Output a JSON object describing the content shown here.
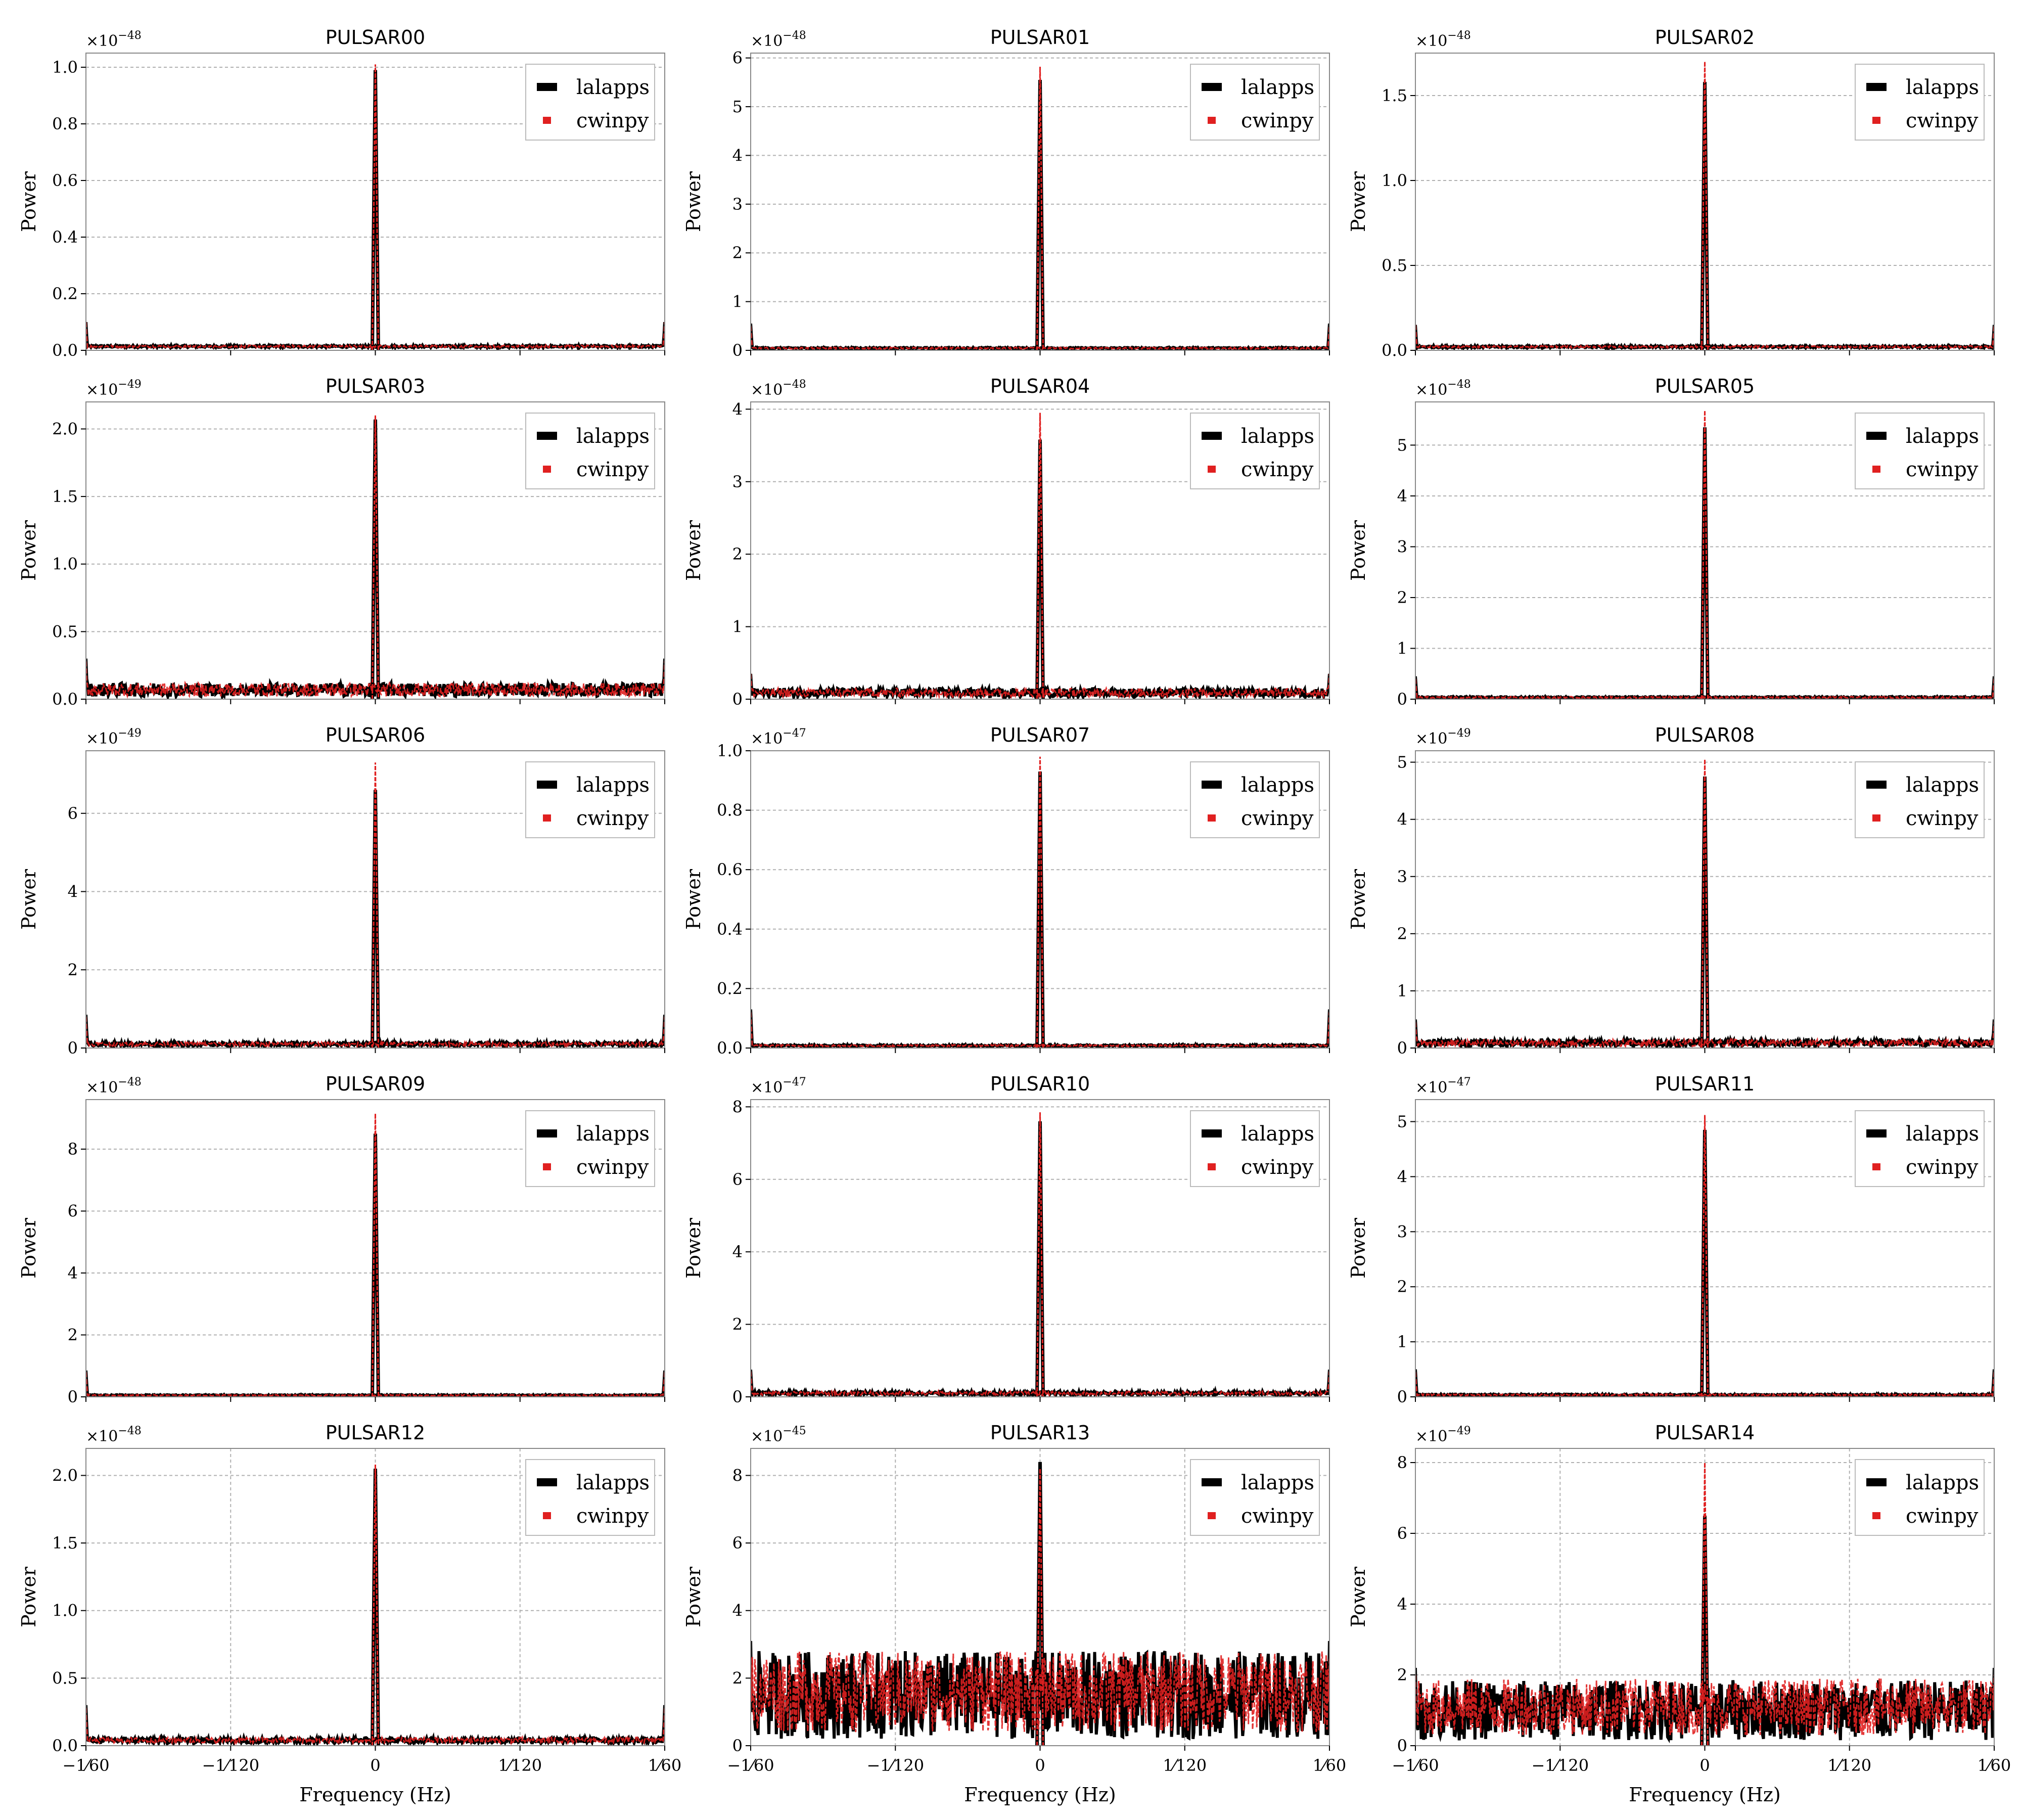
{
  "chart_data": [
    {
      "type": "line",
      "title": "PULSAR00",
      "exponent": "−48",
      "ylabel": "Power",
      "xlabel": "",
      "ylim": [
        0,
        1.05
      ],
      "yticks": [
        "0.0",
        "0.2",
        "0.4",
        "0.6",
        "0.8",
        "1.0"
      ],
      "ytick_values": [
        0,
        0.2,
        0.4,
        0.6,
        0.8,
        1.0
      ],
      "xlim": [
        -0.016667,
        0.016667
      ],
      "xticks": [
        "−1⁄60",
        "−1⁄120",
        "0",
        "1⁄120",
        "1⁄60"
      ],
      "xtick_values": [
        -0.016667,
        -0.008333,
        0,
        0.008333,
        0.016667
      ],
      "x_grid": false,
      "peak_x": 0,
      "series": [
        {
          "name": "lalapps",
          "peak": 0.99,
          "noise_floor": 0.01,
          "noise_range": 0.008,
          "edge_value": 0.1
        },
        {
          "name": "cwinpy",
          "peak": 1.01,
          "noise_floor": 0.01,
          "noise_range": 0.008,
          "edge_value": 0.1
        }
      ],
      "legend": [
        "lalapps",
        "cwinpy"
      ],
      "legend_position": "upper right"
    },
    {
      "type": "line",
      "title": "PULSAR01",
      "exponent": "−48",
      "ylabel": "Power",
      "xlabel": "",
      "ylim": [
        0,
        6.1
      ],
      "yticks": [
        "0",
        "1",
        "2",
        "3",
        "4",
        "5",
        "6"
      ],
      "ytick_values": [
        0,
        1,
        2,
        3,
        4,
        5,
        6
      ],
      "xlim": [
        -0.016667,
        0.016667
      ],
      "xticks": [
        "−1⁄60",
        "−1⁄120",
        "0",
        "1⁄120",
        "1⁄60"
      ],
      "xtick_values": [
        -0.016667,
        -0.008333,
        0,
        0.008333,
        0.016667
      ],
      "x_grid": false,
      "peak_x": 0,
      "series": [
        {
          "name": "lalapps",
          "peak": 5.55,
          "noise_floor": 0.03,
          "noise_range": 0.03,
          "edge_value": 0.55
        },
        {
          "name": "cwinpy",
          "peak": 5.82,
          "noise_floor": 0.03,
          "noise_range": 0.03,
          "edge_value": 0.5
        }
      ],
      "legend": [
        "lalapps",
        "cwinpy"
      ],
      "legend_position": "upper right"
    },
    {
      "type": "line",
      "title": "PULSAR02",
      "exponent": "−48",
      "ylabel": "Power",
      "xlabel": "",
      "ylim": [
        0,
        1.75
      ],
      "yticks": [
        "0.0",
        "0.5",
        "1.0",
        "1.5"
      ],
      "ytick_values": [
        0,
        0.5,
        1.0,
        1.5
      ],
      "xlim": [
        -0.016667,
        0.016667
      ],
      "xticks": [
        "−1⁄60",
        "−1⁄120",
        "0",
        "1⁄120",
        "1⁄60"
      ],
      "xtick_values": [
        -0.016667,
        -0.008333,
        0,
        0.008333,
        0.016667
      ],
      "x_grid": false,
      "peak_x": 0,
      "series": [
        {
          "name": "lalapps",
          "peak": 1.58,
          "noise_floor": 0.015,
          "noise_range": 0.012,
          "edge_value": 0.15
        },
        {
          "name": "cwinpy",
          "peak": 1.7,
          "noise_floor": 0.015,
          "noise_range": 0.012,
          "edge_value": 0.15
        }
      ],
      "legend": [
        "lalapps",
        "cwinpy"
      ],
      "legend_position": "upper right"
    },
    {
      "type": "line",
      "title": "PULSAR03",
      "exponent": "−49",
      "ylabel": "Power",
      "xlabel": "",
      "ylim": [
        0,
        2.2
      ],
      "yticks": [
        "0.0",
        "0.5",
        "1.0",
        "1.5",
        "2.0"
      ],
      "ytick_values": [
        0,
        0.5,
        1.0,
        1.5,
        2.0
      ],
      "xlim": [
        -0.016667,
        0.016667
      ],
      "xticks": [
        "−1⁄60",
        "−1⁄120",
        "0",
        "1⁄120",
        "1⁄60"
      ],
      "xtick_values": [
        -0.016667,
        -0.008333,
        0,
        0.008333,
        0.016667
      ],
      "x_grid": false,
      "peak_x": 0,
      "series": [
        {
          "name": "lalapps",
          "peak": 2.07,
          "noise_floor": 0.02,
          "noise_range": 0.1,
          "edge_value": 0.3
        },
        {
          "name": "cwinpy",
          "peak": 2.1,
          "noise_floor": 0.02,
          "noise_range": 0.1,
          "edge_value": 0.28
        }
      ],
      "legend": [
        "lalapps",
        "cwinpy"
      ],
      "legend_position": "upper right"
    },
    {
      "type": "line",
      "title": "PULSAR04",
      "exponent": "−48",
      "ylabel": "Power",
      "xlabel": "",
      "ylim": [
        0,
        4.1
      ],
      "yticks": [
        "0",
        "1",
        "2",
        "3",
        "4"
      ],
      "ytick_values": [
        0,
        1,
        2,
        3,
        4
      ],
      "xlim": [
        -0.016667,
        0.016667
      ],
      "xticks": [
        "−1⁄60",
        "−1⁄120",
        "0",
        "1⁄120",
        "1⁄60"
      ],
      "xtick_values": [
        -0.016667,
        -0.008333,
        0,
        0.008333,
        0.016667
      ],
      "x_grid": false,
      "peak_x": 0,
      "series": [
        {
          "name": "lalapps",
          "peak": 3.58,
          "noise_floor": 0.03,
          "noise_range": 0.12,
          "edge_value": 0.35
        },
        {
          "name": "cwinpy",
          "peak": 3.95,
          "noise_floor": 0.03,
          "noise_range": 0.12,
          "edge_value": 0.35
        }
      ],
      "legend": [
        "lalapps",
        "cwinpy"
      ],
      "legend_position": "upper right"
    },
    {
      "type": "line",
      "title": "PULSAR05",
      "exponent": "−48",
      "ylabel": "Power",
      "xlabel": "",
      "ylim": [
        0,
        5.85
      ],
      "yticks": [
        "0",
        "1",
        "2",
        "3",
        "4",
        "5"
      ],
      "ytick_values": [
        0,
        1,
        2,
        3,
        4,
        5
      ],
      "xlim": [
        -0.016667,
        0.016667
      ],
      "xticks": [
        "−1⁄60",
        "−1⁄120",
        "0",
        "1⁄120",
        "1⁄60"
      ],
      "xtick_values": [
        -0.016667,
        -0.008333,
        0,
        0.008333,
        0.016667
      ],
      "x_grid": false,
      "peak_x": 0,
      "series": [
        {
          "name": "lalapps",
          "peak": 5.35,
          "noise_floor": 0.02,
          "noise_range": 0.03,
          "edge_value": 0.45
        },
        {
          "name": "cwinpy",
          "peak": 5.68,
          "noise_floor": 0.02,
          "noise_range": 0.03,
          "edge_value": 0.4
        }
      ],
      "legend": [
        "lalapps",
        "cwinpy"
      ],
      "legend_position": "upper right"
    },
    {
      "type": "line",
      "title": "PULSAR06",
      "exponent": "−49",
      "ylabel": "Power",
      "xlabel": "",
      "ylim": [
        0,
        7.6
      ],
      "yticks": [
        "0",
        "2",
        "4",
        "6"
      ],
      "ytick_values": [
        0,
        2,
        4,
        6
      ],
      "xlim": [
        -0.016667,
        0.016667
      ],
      "xticks": [
        "−1⁄60",
        "−1⁄120",
        "0",
        "1⁄120",
        "1⁄60"
      ],
      "xtick_values": [
        -0.016667,
        -0.008333,
        0,
        0.008333,
        0.016667
      ],
      "x_grid": false,
      "peak_x": 0,
      "series": [
        {
          "name": "lalapps",
          "peak": 6.6,
          "noise_floor": 0.05,
          "noise_range": 0.1,
          "edge_value": 0.85
        },
        {
          "name": "cwinpy",
          "peak": 7.3,
          "noise_floor": 0.05,
          "noise_range": 0.1,
          "edge_value": 0.8
        }
      ],
      "legend": [
        "lalapps",
        "cwinpy"
      ],
      "legend_position": "upper right"
    },
    {
      "type": "line",
      "title": "PULSAR07",
      "exponent": "−47",
      "ylabel": "Power",
      "xlabel": "",
      "ylim": [
        0,
        1.0
      ],
      "yticks": [
        "0.0",
        "0.2",
        "0.4",
        "0.6",
        "0.8",
        "1.0"
      ],
      "ytick_values": [
        0,
        0.2,
        0.4,
        0.6,
        0.8,
        1.0
      ],
      "xlim": [
        -0.016667,
        0.016667
      ],
      "xticks": [
        "−1⁄60",
        "−1⁄120",
        "0",
        "1⁄120",
        "1⁄60"
      ],
      "xtick_values": [
        -0.016667,
        -0.008333,
        0,
        0.008333,
        0.016667
      ],
      "x_grid": false,
      "peak_x": 0,
      "series": [
        {
          "name": "lalapps",
          "peak": 0.93,
          "noise_floor": 0.005,
          "noise_range": 0.006,
          "edge_value": 0.13
        },
        {
          "name": "cwinpy",
          "peak": 0.98,
          "noise_floor": 0.005,
          "noise_range": 0.006,
          "edge_value": 0.12
        }
      ],
      "legend": [
        "lalapps",
        "cwinpy"
      ],
      "legend_position": "upper right"
    },
    {
      "type": "line",
      "title": "PULSAR08",
      "exponent": "−49",
      "ylabel": "Power",
      "xlabel": "",
      "ylim": [
        0,
        5.2
      ],
      "yticks": [
        "0",
        "1",
        "2",
        "3",
        "4",
        "5"
      ],
      "ytick_values": [
        0,
        1,
        2,
        3,
        4,
        5
      ],
      "xlim": [
        -0.016667,
        0.016667
      ],
      "xticks": [
        "−1⁄60",
        "−1⁄120",
        "0",
        "1⁄120",
        "1⁄60"
      ],
      "xtick_values": [
        -0.016667,
        -0.008333,
        0,
        0.008333,
        0.016667
      ],
      "x_grid": false,
      "peak_x": 0,
      "series": [
        {
          "name": "lalapps",
          "peak": 4.75,
          "noise_floor": 0.03,
          "noise_range": 0.12,
          "edge_value": 0.5
        },
        {
          "name": "cwinpy",
          "peak": 5.05,
          "noise_floor": 0.03,
          "noise_range": 0.12,
          "edge_value": 0.45
        }
      ],
      "legend": [
        "lalapps",
        "cwinpy"
      ],
      "legend_position": "upper right"
    },
    {
      "type": "line",
      "title": "PULSAR09",
      "exponent": "−48",
      "ylabel": "Power",
      "xlabel": "",
      "ylim": [
        0,
        9.6
      ],
      "yticks": [
        "0",
        "2",
        "4",
        "6",
        "8"
      ],
      "ytick_values": [
        0,
        2,
        4,
        6,
        8
      ],
      "xlim": [
        -0.016667,
        0.016667
      ],
      "xticks": [
        "−1⁄60",
        "−1⁄120",
        "0",
        "1⁄120",
        "1⁄60"
      ],
      "xtick_values": [
        -0.016667,
        -0.008333,
        0,
        0.008333,
        0.016667
      ],
      "x_grid": false,
      "peak_x": 0,
      "series": [
        {
          "name": "lalapps",
          "peak": 8.5,
          "noise_floor": 0.03,
          "noise_range": 0.04,
          "edge_value": 0.85
        },
        {
          "name": "cwinpy",
          "peak": 9.15,
          "noise_floor": 0.03,
          "noise_range": 0.04,
          "edge_value": 0.8
        }
      ],
      "legend": [
        "lalapps",
        "cwinpy"
      ],
      "legend_position": "upper right"
    },
    {
      "type": "line",
      "title": "PULSAR10",
      "exponent": "−47",
      "ylabel": "Power",
      "xlabel": "",
      "ylim": [
        0,
        8.2
      ],
      "yticks": [
        "0",
        "2",
        "4",
        "6",
        "8"
      ],
      "ytick_values": [
        0,
        2,
        4,
        6,
        8
      ],
      "xlim": [
        -0.016667,
        0.016667
      ],
      "xticks": [
        "−1⁄60",
        "−1⁄120",
        "0",
        "1⁄120",
        "1⁄60"
      ],
      "xtick_values": [
        -0.016667,
        -0.008333,
        0,
        0.008333,
        0.016667
      ],
      "x_grid": false,
      "peak_x": 0,
      "series": [
        {
          "name": "lalapps",
          "peak": 7.6,
          "noise_floor": 0.05,
          "noise_range": 0.1,
          "edge_value": 0.75
        },
        {
          "name": "cwinpy",
          "peak": 7.85,
          "noise_floor": 0.05,
          "noise_range": 0.1,
          "edge_value": 0.7
        }
      ],
      "legend": [
        "lalapps",
        "cwinpy"
      ],
      "legend_position": "upper right"
    },
    {
      "type": "line",
      "title": "PULSAR11",
      "exponent": "−47",
      "ylabel": "Power",
      "xlabel": "",
      "ylim": [
        0,
        5.4
      ],
      "yticks": [
        "0",
        "1",
        "2",
        "3",
        "4",
        "5"
      ],
      "ytick_values": [
        0,
        1,
        2,
        3,
        4,
        5
      ],
      "xlim": [
        -0.016667,
        0.016667
      ],
      "xticks": [
        "−1⁄60",
        "−1⁄120",
        "0",
        "1⁄120",
        "1⁄60"
      ],
      "xtick_values": [
        -0.016667,
        -0.008333,
        0,
        0.008333,
        0.016667
      ],
      "x_grid": false,
      "peak_x": 0,
      "series": [
        {
          "name": "lalapps",
          "peak": 4.85,
          "noise_floor": 0.02,
          "noise_range": 0.03,
          "edge_value": 0.5
        },
        {
          "name": "cwinpy",
          "peak": 5.12,
          "noise_floor": 0.02,
          "noise_range": 0.03,
          "edge_value": 0.45
        }
      ],
      "legend": [
        "lalapps",
        "cwinpy"
      ],
      "legend_position": "upper right"
    },
    {
      "type": "line",
      "title": "PULSAR12",
      "exponent": "−48",
      "ylabel": "Power",
      "xlabel": "Frequency (Hz)",
      "ylim": [
        0,
        2.2
      ],
      "yticks": [
        "0.0",
        "0.5",
        "1.0",
        "1.5",
        "2.0"
      ],
      "ytick_values": [
        0,
        0.5,
        1.0,
        1.5,
        2.0
      ],
      "xlim": [
        -0.016667,
        0.016667
      ],
      "xticks": [
        "−1⁄60",
        "−1⁄120",
        "0",
        "1⁄120",
        "1⁄60"
      ],
      "xtick_values": [
        -0.016667,
        -0.008333,
        0,
        0.008333,
        0.016667
      ],
      "x_grid": true,
      "peak_x": 0,
      "series": [
        {
          "name": "lalapps",
          "peak": 2.05,
          "noise_floor": 0.02,
          "noise_range": 0.04,
          "edge_value": 0.3
        },
        {
          "name": "cwinpy",
          "peak": 2.08,
          "noise_floor": 0.02,
          "noise_range": 0.04,
          "edge_value": 0.28
        }
      ],
      "legend": [
        "lalapps",
        "cwinpy"
      ],
      "legend_position": "upper right"
    },
    {
      "type": "line",
      "title": "PULSAR13",
      "exponent": "−45",
      "ylabel": "Power",
      "xlabel": "Frequency (Hz)",
      "ylim": [
        0,
        8.8
      ],
      "yticks": [
        "0",
        "2",
        "4",
        "6",
        "8"
      ],
      "ytick_values": [
        0,
        2,
        4,
        6,
        8
      ],
      "xlim": [
        -0.016667,
        0.016667
      ],
      "xticks": [
        "−1⁄60",
        "−1⁄120",
        "0",
        "1⁄120",
        "1⁄60"
      ],
      "xtick_values": [
        -0.016667,
        -0.008333,
        0,
        0.008333,
        0.016667
      ],
      "x_grid": true,
      "peak_x": 0,
      "series": [
        {
          "name": "lalapps",
          "peak": 8.4,
          "noise_floor": 0.2,
          "noise_range": 2.6,
          "edge_value": 3.1
        },
        {
          "name": "cwinpy",
          "peak": 8.2,
          "noise_floor": 0.4,
          "noise_range": 2.4,
          "edge_value": 2.6
        }
      ],
      "legend": [
        "lalapps",
        "cwinpy"
      ],
      "legend_position": "upper right"
    },
    {
      "type": "line",
      "title": "PULSAR14",
      "exponent": "−49",
      "ylabel": "Power",
      "xlabel": "Frequency (Hz)",
      "ylim": [
        0,
        8.4
      ],
      "yticks": [
        "0",
        "2",
        "4",
        "6",
        "8"
      ],
      "ytick_values": [
        0,
        2,
        4,
        6,
        8
      ],
      "xlim": [
        -0.016667,
        0.016667
      ],
      "xticks": [
        "−1⁄60",
        "−1⁄120",
        "0",
        "1⁄120",
        "1⁄60"
      ],
      "xtick_values": [
        -0.016667,
        -0.008333,
        0,
        0.008333,
        0.016667
      ],
      "x_grid": true,
      "peak_x": 0,
      "series": [
        {
          "name": "lalapps",
          "peak": 6.5,
          "noise_floor": 0.15,
          "noise_range": 1.7,
          "edge_value": 2.2
        },
        {
          "name": "cwinpy",
          "peak": 8.0,
          "noise_floor": 0.3,
          "noise_range": 1.6,
          "edge_value": 2.0
        }
      ],
      "legend": [
        "lalapps",
        "cwinpy"
      ],
      "legend_position": "upper right"
    }
  ],
  "colors": {
    "lalapps": "#000000",
    "cwinpy": "#e02020",
    "cwinpy_fill": "#c00000"
  }
}
